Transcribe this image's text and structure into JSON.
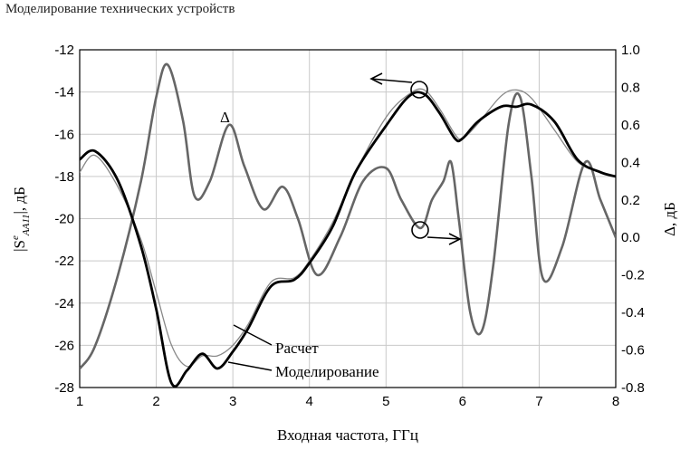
{
  "page_header": "Моделирование технических устройств",
  "chart_data": {
    "type": "line",
    "xlabel": "Входная частота, ГГц",
    "ylabel_left": "|S",
    "ylabel_left_sup": "e",
    "ylabel_left_sub": "AA11",
    "ylabel_left_tail": "|, дБ",
    "ylabel_right": "Δ, дБ",
    "xlim": [
      1,
      8
    ],
    "ylim_left": [
      -28,
      -12
    ],
    "ylim_right": [
      -0.8,
      1.0
    ],
    "x_ticks": [
      "1",
      "2",
      "3",
      "4",
      "5",
      "6",
      "7",
      "8"
    ],
    "y_ticks_left": [
      "-28",
      "-26",
      "-24",
      "-22",
      "-20",
      "-18",
      "-16",
      "-14",
      "-12"
    ],
    "y_ticks_right": [
      "-0.8",
      "-0.6",
      "-0.4",
      "-0.2",
      "0.0",
      "0.2",
      "0.4",
      "0.6",
      "0.8",
      "1.0"
    ],
    "grid": true,
    "series": [
      {
        "name": "Расчет",
        "axis": "left",
        "color": "#888888",
        "x": [
          1.0,
          1.2,
          1.5,
          1.8,
          2.0,
          2.2,
          2.4,
          2.6,
          2.8,
          3.0,
          3.2,
          3.5,
          3.8,
          4.0,
          4.3,
          4.6,
          5.0,
          5.3,
          5.5,
          5.7,
          5.9,
          6.0,
          6.2,
          6.5,
          6.7,
          6.9,
          7.2,
          7.5,
          7.8,
          8.0
        ],
        "y": [
          -17.8,
          -17.0,
          -18.5,
          -21.0,
          -23.5,
          -26.0,
          -27.0,
          -26.5,
          -26.5,
          -26.0,
          -25.0,
          -23.0,
          -22.8,
          -22.0,
          -20.2,
          -17.8,
          -15.2,
          -14.1,
          -13.9,
          -14.8,
          -16.0,
          -16.2,
          -15.5,
          -14.2,
          -13.9,
          -14.3,
          -15.8,
          -17.3,
          -17.8,
          -18.0
        ]
      },
      {
        "name": "Моделирование",
        "axis": "left",
        "color": "#000000",
        "x": [
          1.0,
          1.2,
          1.5,
          1.8,
          2.0,
          2.2,
          2.4,
          2.6,
          2.8,
          3.0,
          3.2,
          3.5,
          3.8,
          4.0,
          4.3,
          4.6,
          5.0,
          5.3,
          5.5,
          5.7,
          5.9,
          6.0,
          6.2,
          6.5,
          6.7,
          6.9,
          7.2,
          7.5,
          7.8,
          8.0
        ],
        "y": [
          -17.2,
          -16.8,
          -18.2,
          -21.3,
          -24.3,
          -27.8,
          -27.2,
          -26.4,
          -27.1,
          -26.3,
          -25.2,
          -23.2,
          -22.9,
          -22.1,
          -20.4,
          -17.8,
          -15.6,
          -14.2,
          -14.1,
          -15.0,
          -16.2,
          -16.2,
          -15.4,
          -14.7,
          -14.7,
          -14.6,
          -15.4,
          -17.2,
          -17.8,
          -18.0
        ]
      },
      {
        "name": "Δ",
        "axis": "right",
        "color": "#666666",
        "x": [
          1.0,
          1.2,
          1.5,
          1.8,
          2.0,
          2.15,
          2.35,
          2.5,
          2.7,
          2.95,
          3.15,
          3.4,
          3.65,
          3.85,
          4.1,
          4.4,
          4.7,
          5.0,
          5.2,
          5.45,
          5.6,
          5.75,
          5.85,
          5.95,
          6.1,
          6.25,
          6.4,
          6.6,
          6.75,
          6.9,
          7.05,
          7.3,
          7.6,
          7.8,
          8.0
        ],
        "y": [
          -0.7,
          -0.58,
          -0.2,
          0.3,
          0.75,
          0.92,
          0.62,
          0.22,
          0.3,
          0.6,
          0.38,
          0.15,
          0.27,
          0.1,
          -0.2,
          0.0,
          0.3,
          0.37,
          0.2,
          0.05,
          0.2,
          0.3,
          0.4,
          0.1,
          -0.4,
          -0.5,
          -0.15,
          0.6,
          0.75,
          0.32,
          -0.22,
          -0.05,
          0.4,
          0.2,
          0.0
        ]
      }
    ],
    "annotations": {
      "delta_label": "Δ",
      "raschet_label": "Расчет",
      "model_label": "Моделирование"
    }
  }
}
